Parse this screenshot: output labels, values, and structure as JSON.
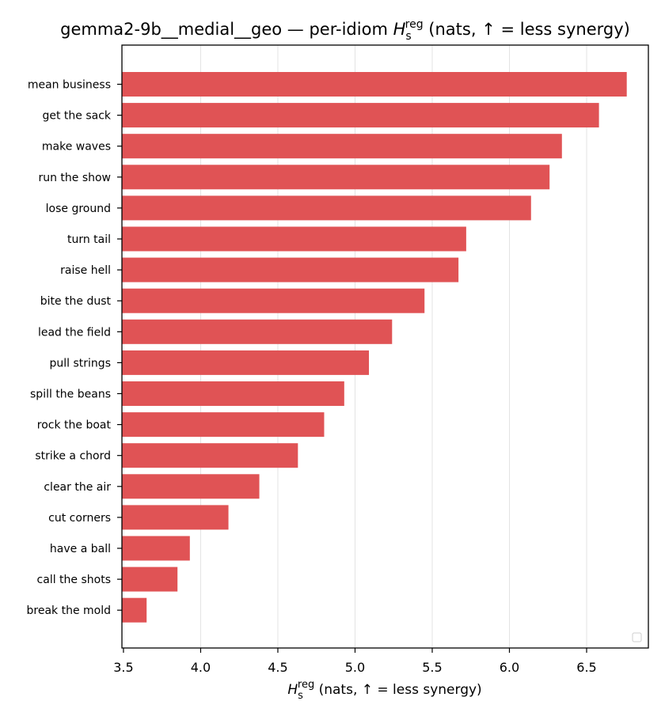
{
  "chart_data": {
    "type": "bar",
    "orientation": "horizontal",
    "title": {
      "prefix": "gemma2-9b__medial__geo — per-idiom ",
      "symbol": "H",
      "subscript": "s",
      "superscript": "reg",
      "suffix": " (nats, ↑ = less synergy)"
    },
    "xlabel": {
      "symbol": "H",
      "subscript": "s",
      "superscript": "reg",
      "suffix": " (nats, ↑ = less synergy)"
    },
    "categories": [
      "mean business",
      "get the sack",
      "make waves",
      "run the show",
      "lose ground",
      "turn tail",
      "raise hell",
      "bite the dust",
      "lead the field",
      "pull strings",
      "spill the beans",
      "rock the boat",
      "strike a chord",
      "clear the air",
      "cut corners",
      "have a ball",
      "call the shots",
      "break the mold"
    ],
    "values": [
      6.76,
      6.58,
      6.34,
      6.26,
      6.14,
      5.72,
      5.67,
      5.45,
      5.24,
      5.09,
      4.93,
      4.8,
      4.63,
      4.38,
      4.18,
      3.93,
      3.85,
      3.65
    ],
    "xlim": [
      3.49,
      6.9
    ],
    "xticks": [
      "3.5",
      "4.0",
      "4.5",
      "5.0",
      "5.5",
      "6.0",
      "6.5"
    ],
    "grid": "vertical",
    "legend_placement": "bottom-right",
    "bar_color": "#e05355"
  }
}
